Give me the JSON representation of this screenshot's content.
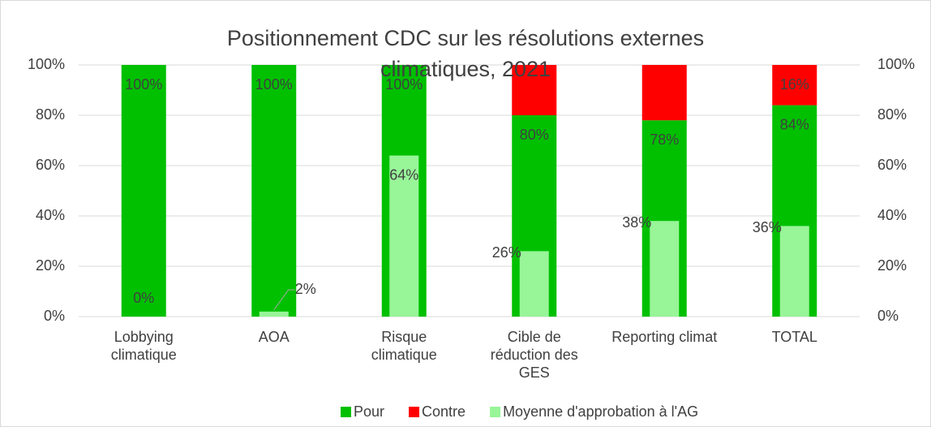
{
  "chart_data": {
    "type": "bar",
    "title": "Positionnement CDC sur les résolutions externes climatiques, 2021",
    "categories": [
      "Lobbying climatique",
      "AOA",
      "Risque climatique",
      "Cible de réduction des GES",
      "Reporting climat",
      "TOTAL"
    ],
    "series": [
      {
        "name": "Pour",
        "color": "#00c000",
        "values": [
          100,
          100,
          100,
          80,
          78,
          84
        ],
        "value_labels": [
          "100%",
          "100%",
          "100%",
          "80%",
          "78%",
          "84%"
        ]
      },
      {
        "name": "Contre",
        "color": "#ff0000",
        "values": [
          0,
          0,
          0,
          20,
          22,
          16
        ],
        "value_labels": [
          null,
          null,
          null,
          null,
          null,
          "16%"
        ]
      },
      {
        "name": "Moyenne d'approbation à l'AG",
        "color": "#98f598",
        "axis": "y2",
        "values": [
          0,
          2,
          64,
          26,
          38,
          36
        ],
        "value_labels": [
          "0%",
          "2%",
          "64%",
          "26%",
          "38%",
          "36%"
        ]
      }
    ],
    "ylim": [
      0,
      100
    ],
    "yticks": [
      {
        "value": 0,
        "label": "0%"
      },
      {
        "value": 20,
        "label": "20%"
      },
      {
        "value": 40,
        "label": "40%"
      },
      {
        "value": 60,
        "label": "60%"
      },
      {
        "value": 80,
        "label": "80%"
      },
      {
        "value": 100,
        "label": "100%"
      }
    ],
    "y2lim": [
      0,
      100
    ],
    "y2ticks": [
      {
        "value": 0,
        "label": "0%"
      },
      {
        "value": 20,
        "label": "20%"
      },
      {
        "value": 40,
        "label": "40%"
      },
      {
        "value": 60,
        "label": "60%"
      },
      {
        "value": 80,
        "label": "80%"
      },
      {
        "value": 100,
        "label": "100%"
      }
    ],
    "grid": true,
    "legend": "bottom"
  }
}
